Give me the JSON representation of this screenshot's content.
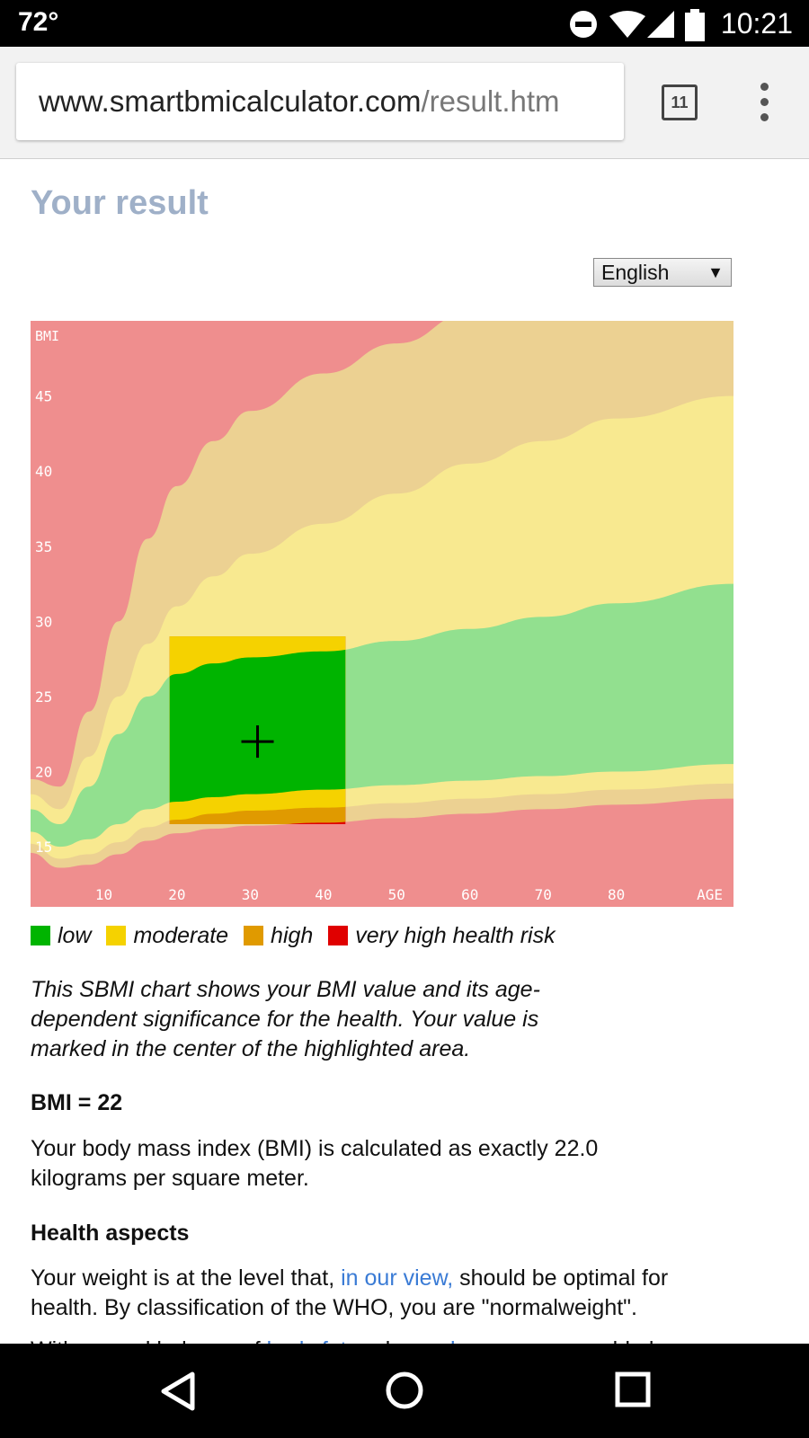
{
  "status": {
    "temperature": "72°",
    "time": "10:21"
  },
  "browser": {
    "url_host": "www.smartbmicalculator.com",
    "url_path": "/result.htm",
    "tab_count": "11"
  },
  "page": {
    "title": "Your result",
    "language": "English",
    "legend": [
      {
        "label": "low",
        "color": "#00b400"
      },
      {
        "label": "moderate",
        "color": "#f5d200"
      },
      {
        "label": "high",
        "color": "#e09a00"
      },
      {
        "label": "very high health risk",
        "color": "#e00000"
      }
    ],
    "caption": "This SBMI chart shows your BMI value and its age-dependent significance for the health. Your value is marked in the center of the highlighted area.",
    "bmi_heading": "BMI = 22",
    "bmi_text": "Your body mass index (BMI) is calculated as exactly 22.0 kilograms per square meter.",
    "health_heading": "Health aspects",
    "health_pre": "Your weight is at the level that, ",
    "health_link": "in our view,",
    "health_post": " should be optimal for health. By classification of the WHO, you are \"normalweight\".",
    "cut_line_pre": "With a good balance of ",
    "cut_line_link1": "body fat",
    "cut_line_mid": " and ",
    "cut_line_link2": "muscle",
    "cut_line_post": " mass you could also"
  },
  "chart_data": {
    "type": "area",
    "ylabel": "BMI",
    "xlabel": "AGE",
    "x_ticks": [
      "10",
      "20",
      "30",
      "40",
      "50",
      "60",
      "70",
      "80"
    ],
    "y_ticks": [
      "15",
      "20",
      "25",
      "30",
      "35",
      "40",
      "45"
    ],
    "xlim": [
      0,
      96
    ],
    "ylim": [
      11,
      50
    ],
    "marker": {
      "age": 31,
      "bmi": 22
    },
    "highlight": {
      "age_from": 19,
      "age_to": 43,
      "bmi_from": 16.5,
      "bmi_to": 29
    },
    "colors": {
      "very_high": "#ef8e8e",
      "high": "#ecd192",
      "moderate": "#f8e990",
      "low": "#92e08f",
      "low_strong": "#00b400",
      "moderate_strong": "#f5d200",
      "high_strong": "#e09a00",
      "very_high_strong": "#e00000"
    },
    "boundaries_age": [
      0,
      4,
      8,
      12,
      16,
      20,
      25,
      30,
      40,
      50,
      60,
      70,
      80,
      96
    ],
    "boundaries": {
      "very_high_upper": [
        19.5,
        19.0,
        24.0,
        30.0,
        35.5,
        39.0,
        42.0,
        44.0,
        46.5,
        48.5,
        50.5,
        52.0,
        53.0,
        55.0
      ],
      "high_upper": [
        18.5,
        17.5,
        21.0,
        25.0,
        28.5,
        31.0,
        33.0,
        34.5,
        36.5,
        38.5,
        40.5,
        42.0,
        43.5,
        45.0
      ],
      "moderate_upper": [
        17.5,
        16.5,
        19.0,
        22.5,
        25.0,
        26.5,
        27.2,
        27.6,
        28.0,
        28.7,
        29.5,
        30.3,
        31.2,
        32.5
      ],
      "low_lower": [
        16.0,
        15.0,
        15.5,
        16.5,
        17.5,
        18.0,
        18.3,
        18.5,
        18.8,
        19.1,
        19.4,
        19.7,
        20.0,
        20.5
      ],
      "moderate_lower": [
        15.2,
        14.2,
        14.5,
        15.3,
        16.3,
        16.8,
        17.2,
        17.4,
        17.6,
        17.9,
        18.2,
        18.5,
        18.8,
        19.2
      ],
      "high_lower": [
        14.6,
        13.6,
        13.8,
        14.5,
        15.4,
        15.9,
        16.2,
        16.4,
        16.6,
        16.9,
        17.2,
        17.5,
        17.8,
        18.2
      ]
    }
  }
}
